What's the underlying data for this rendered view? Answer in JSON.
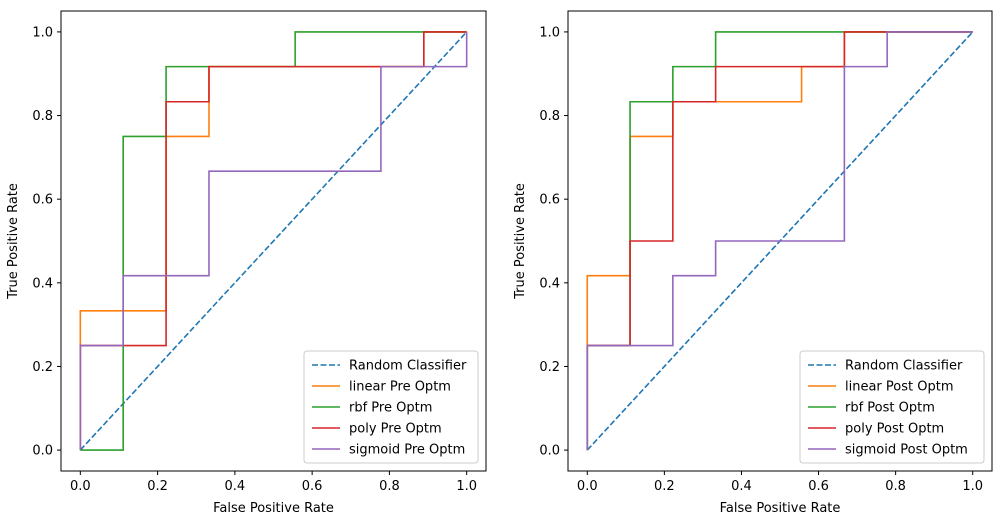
{
  "chart_data": [
    {
      "type": "line",
      "title": "",
      "xlabel": "False Positive Rate",
      "ylabel": "True Positive Rate",
      "xlim": [
        -0.05,
        1.05
      ],
      "ylim": [
        -0.05,
        1.05
      ],
      "xticks": [
        "0.0",
        "0.2",
        "0.4",
        "0.6",
        "0.8",
        "1.0"
      ],
      "yticks": [
        "0.0",
        "0.2",
        "0.4",
        "0.6",
        "0.8",
        "1.0"
      ],
      "grid": false,
      "legend_position": "lower-right",
      "series": [
        {
          "name": "Random Classifier",
          "color": "#1f77b4",
          "dashed": true,
          "points": [
            [
              0,
              0
            ],
            [
              1,
              1
            ]
          ]
        },
        {
          "name": "linear Pre Optm",
          "color": "#ff7f0e",
          "dashed": false,
          "points": [
            [
              0,
              0
            ],
            [
              0,
              0.333
            ],
            [
              0.222,
              0.333
            ],
            [
              0.222,
              0.75
            ],
            [
              0.333,
              0.75
            ],
            [
              0.333,
              0.917
            ],
            [
              0.889,
              0.917
            ],
            [
              0.889,
              1.0
            ],
            [
              1.0,
              1.0
            ]
          ]
        },
        {
          "name": "rbf Pre Optm",
          "color": "#2ca02c",
          "dashed": false,
          "points": [
            [
              0,
              0
            ],
            [
              0.111,
              0
            ],
            [
              0.111,
              0.75
            ],
            [
              0.222,
              0.75
            ],
            [
              0.222,
              0.917
            ],
            [
              0.556,
              0.917
            ],
            [
              0.556,
              1.0
            ],
            [
              1.0,
              1.0
            ]
          ]
        },
        {
          "name": "poly Pre Optm",
          "color": "#d62728",
          "dashed": false,
          "points": [
            [
              0,
              0
            ],
            [
              0,
              0.25
            ],
            [
              0.222,
              0.25
            ],
            [
              0.222,
              0.833
            ],
            [
              0.333,
              0.833
            ],
            [
              0.333,
              0.917
            ],
            [
              0.889,
              0.917
            ],
            [
              0.889,
              1.0
            ],
            [
              1.0,
              1.0
            ]
          ]
        },
        {
          "name": "sigmoid Pre Optm",
          "color": "#9467bd",
          "dashed": false,
          "points": [
            [
              0,
              0
            ],
            [
              0,
              0.25
            ],
            [
              0.111,
              0.25
            ],
            [
              0.111,
              0.417
            ],
            [
              0.333,
              0.417
            ],
            [
              0.333,
              0.667
            ],
            [
              0.778,
              0.667
            ],
            [
              0.778,
              0.917
            ],
            [
              1.0,
              0.917
            ],
            [
              1.0,
              1.0
            ]
          ]
        }
      ]
    },
    {
      "type": "line",
      "title": "",
      "xlabel": "False Positive Rate",
      "ylabel": "True Positive Rate",
      "xlim": [
        -0.05,
        1.05
      ],
      "ylim": [
        -0.05,
        1.05
      ],
      "xticks": [
        "0.0",
        "0.2",
        "0.4",
        "0.6",
        "0.8",
        "1.0"
      ],
      "yticks": [
        "0.0",
        "0.2",
        "0.4",
        "0.6",
        "0.8",
        "1.0"
      ],
      "grid": false,
      "legend_position": "lower-right",
      "series": [
        {
          "name": "Random Classifier",
          "color": "#1f77b4",
          "dashed": true,
          "points": [
            [
              0,
              0
            ],
            [
              1,
              1
            ]
          ]
        },
        {
          "name": "linear Post Optm",
          "color": "#ff7f0e",
          "dashed": false,
          "points": [
            [
              0,
              0
            ],
            [
              0,
              0.417
            ],
            [
              0.111,
              0.417
            ],
            [
              0.111,
              0.75
            ],
            [
              0.222,
              0.75
            ],
            [
              0.222,
              0.833
            ],
            [
              0.556,
              0.833
            ],
            [
              0.556,
              0.917
            ],
            [
              0.667,
              0.917
            ],
            [
              0.667,
              1.0
            ],
            [
              1.0,
              1.0
            ]
          ]
        },
        {
          "name": "rbf Post Optm",
          "color": "#2ca02c",
          "dashed": false,
          "points": [
            [
              0,
              0
            ],
            [
              0,
              0.25
            ],
            [
              0.111,
              0.25
            ],
            [
              0.111,
              0.833
            ],
            [
              0.222,
              0.833
            ],
            [
              0.222,
              0.917
            ],
            [
              0.333,
              0.917
            ],
            [
              0.333,
              1.0
            ],
            [
              1.0,
              1.0
            ]
          ]
        },
        {
          "name": "poly Post Optm",
          "color": "#d62728",
          "dashed": false,
          "points": [
            [
              0,
              0
            ],
            [
              0,
              0.25
            ],
            [
              0.111,
              0.25
            ],
            [
              0.111,
              0.5
            ],
            [
              0.222,
              0.5
            ],
            [
              0.222,
              0.833
            ],
            [
              0.333,
              0.833
            ],
            [
              0.333,
              0.917
            ],
            [
              0.667,
              0.917
            ],
            [
              0.667,
              1.0
            ],
            [
              1.0,
              1.0
            ]
          ]
        },
        {
          "name": "sigmoid Post Optm",
          "color": "#9467bd",
          "dashed": false,
          "points": [
            [
              0,
              0
            ],
            [
              0,
              0.25
            ],
            [
              0.222,
              0.25
            ],
            [
              0.222,
              0.417
            ],
            [
              0.333,
              0.417
            ],
            [
              0.333,
              0.5
            ],
            [
              0.667,
              0.5
            ],
            [
              0.667,
              0.917
            ],
            [
              0.778,
              0.917
            ],
            [
              0.778,
              1.0
            ],
            [
              1.0,
              1.0
            ]
          ]
        }
      ]
    }
  ]
}
